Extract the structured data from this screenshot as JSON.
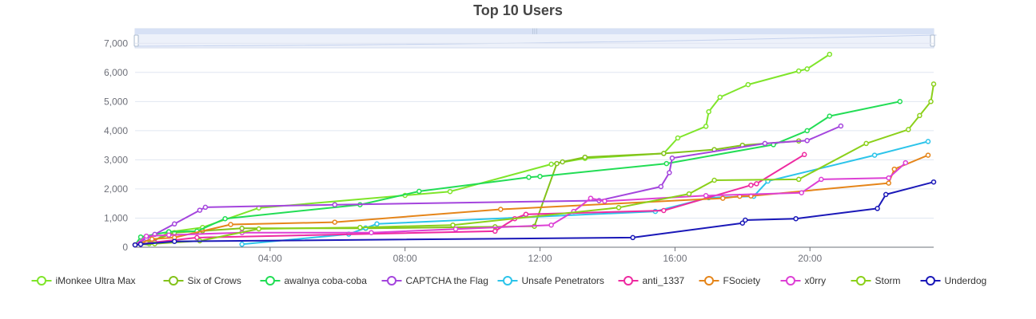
{
  "chart_data": {
    "type": "line",
    "title": "Top 10 Users",
    "x_start": "00:00",
    "x_end": "23:40",
    "x_ticks": [
      "04:00",
      "08:00",
      "12:00",
      "16:00",
      "20:00"
    ],
    "y_ticks": [
      "0",
      "1,000",
      "2,000",
      "3,000",
      "4,000",
      "5,000",
      "6,000",
      "7,000"
    ],
    "ylim": [
      0,
      7500
    ],
    "legend_position": "bottom",
    "has_data_zoom_slider": true,
    "series": [
      {
        "name": "iMonkee Ultra Max",
        "color": "#7fe52a",
        "x": [
          "00:00",
          "00:25",
          "01:00",
          "02:00",
          "03:40",
          "08:00",
          "09:20",
          "12:20",
          "13:20",
          "15:40",
          "16:05",
          "16:55",
          "17:00",
          "17:20",
          "18:10",
          "19:40",
          "19:55",
          "20:35"
        ],
        "y": [
          80,
          120,
          520,
          680,
          1350,
          1780,
          1910,
          2850,
          3050,
          3220,
          3750,
          4150,
          4650,
          5150,
          5580,
          6050,
          6120,
          6620
        ]
      },
      {
        "name": "Six of Crows",
        "color": "#83c21a",
        "x": [
          "00:00",
          "00:20",
          "01:10",
          "02:00",
          "03:10",
          "06:50",
          "10:40",
          "11:50",
          "12:30",
          "12:40",
          "13:20",
          "15:40",
          "17:10",
          "18:00",
          "19:40"
        ],
        "y": [
          80,
          150,
          500,
          560,
          650,
          650,
          700,
          720,
          2870,
          2930,
          3090,
          3220,
          3350,
          3500,
          3650
        ]
      },
      {
        "name": "awalnya coba-coba",
        "color": "#22dd55",
        "x": [
          "00:00",
          "00:10",
          "01:00",
          "01:50",
          "02:40",
          "06:40",
          "08:25",
          "11:40",
          "12:00",
          "15:45",
          "18:55",
          "19:55",
          "20:35",
          "22:40"
        ],
        "y": [
          80,
          350,
          530,
          550,
          980,
          1460,
          1920,
          2400,
          2430,
          2870,
          3520,
          4000,
          4500,
          5000
        ]
      },
      {
        "name": "CAPTCHA the Flag",
        "color": "#a445dd",
        "x": [
          "00:00",
          "00:20",
          "00:35",
          "01:10",
          "01:55",
          "02:05",
          "05:55",
          "13:45",
          "15:35",
          "15:50",
          "15:55",
          "18:40",
          "19:55",
          "20:55"
        ],
        "y": [
          80,
          300,
          440,
          800,
          1270,
          1370,
          1460,
          1600,
          2080,
          2560,
          3060,
          3560,
          3660,
          4160
        ]
      },
      {
        "name": "Unsafe Penetrators",
        "color": "#2cc4ea",
        "x": [
          "03:10",
          "06:20",
          "06:50",
          "07:10",
          "15:25",
          "17:00",
          "18:20",
          "18:45",
          "21:55",
          "23:30"
        ],
        "y": [
          100,
          450,
          660,
          800,
          1230,
          1700,
          1750,
          2270,
          3160,
          3630
        ]
      },
      {
        "name": "anti_1337",
        "color": "#ee2aa0",
        "x": [
          "00:00",
          "00:35",
          "01:50",
          "10:40",
          "11:15",
          "11:35",
          "15:40",
          "18:15",
          "18:25",
          "19:50"
        ],
        "y": [
          80,
          170,
          330,
          550,
          980,
          1130,
          1260,
          2130,
          2180,
          3180
        ]
      },
      {
        "name": "FSociety",
        "color": "#e5851a",
        "x": [
          "00:00",
          "00:30",
          "01:10",
          "02:50",
          "05:55",
          "10:50",
          "17:25",
          "17:55",
          "18:15",
          "22:20",
          "22:30",
          "23:30"
        ],
        "y": [
          80,
          280,
          330,
          780,
          860,
          1300,
          1680,
          1750,
          1760,
          2200,
          2680,
          3160
        ]
      },
      {
        "name": "x0rry",
        "color": "#dd40d5",
        "x": [
          "00:00",
          "00:20",
          "01:00",
          "03:10",
          "07:00",
          "09:30",
          "12:20",
          "13:00",
          "13:30",
          "13:55",
          "16:55",
          "19:45",
          "20:20",
          "22:20",
          "22:50"
        ],
        "y": [
          80,
          380,
          420,
          500,
          500,
          620,
          760,
          1230,
          1680,
          1580,
          1770,
          1870,
          2330,
          2380,
          2900
        ]
      },
      {
        "name": "Storm",
        "color": "#8bd01a",
        "x": [
          "00:00",
          "00:35",
          "01:55",
          "03:40",
          "06:40",
          "09:25",
          "14:20",
          "16:25",
          "17:10",
          "19:40",
          "21:40",
          "22:55",
          "23:15",
          "23:35",
          "23:40"
        ],
        "y": [
          80,
          120,
          220,
          630,
          680,
          760,
          1360,
          1830,
          2300,
          2330,
          3560,
          4040,
          4520,
          5000,
          5600
        ]
      },
      {
        "name": "Underdog",
        "color": "#1a18b8",
        "x": [
          "00:00",
          "00:10",
          "01:10",
          "14:45",
          "18:00",
          "18:05",
          "19:35",
          "22:00",
          "22:15",
          "23:40"
        ],
        "y": [
          80,
          100,
          200,
          330,
          830,
          930,
          980,
          1330,
          1810,
          2240
        ]
      }
    ]
  }
}
